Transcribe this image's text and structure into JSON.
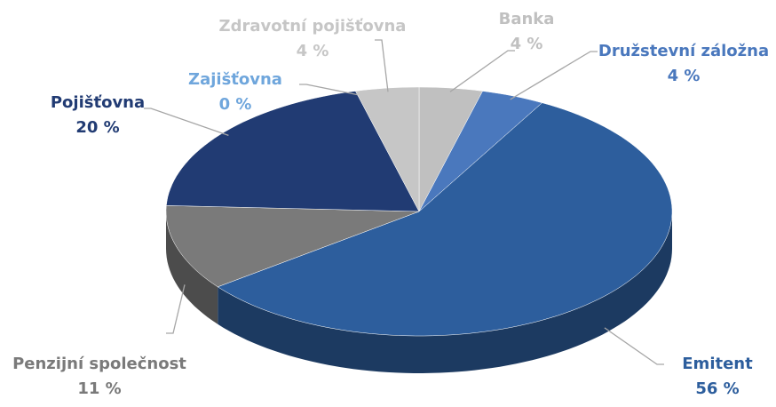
{
  "chart_data": {
    "type": "pie",
    "categories": [
      "Banka",
      "Družstevní záložna",
      "Emitent",
      "Penzijní společnost",
      "Pojišťovna",
      "Zajišťovna",
      "Zdravotní pojišťovna"
    ],
    "values": [
      4,
      4,
      56,
      11,
      20,
      0,
      4
    ],
    "value_labels": [
      "4 %",
      "4 %",
      "56 %",
      "11 %",
      "20 %",
      "0 %",
      "4 %"
    ],
    "colors": [
      "#c0c0c0",
      "#4a78bd",
      "#2d5e9d",
      "#7a7a7a",
      "#213b73",
      "#6fa6dc",
      "#c6c6c6"
    ]
  }
}
